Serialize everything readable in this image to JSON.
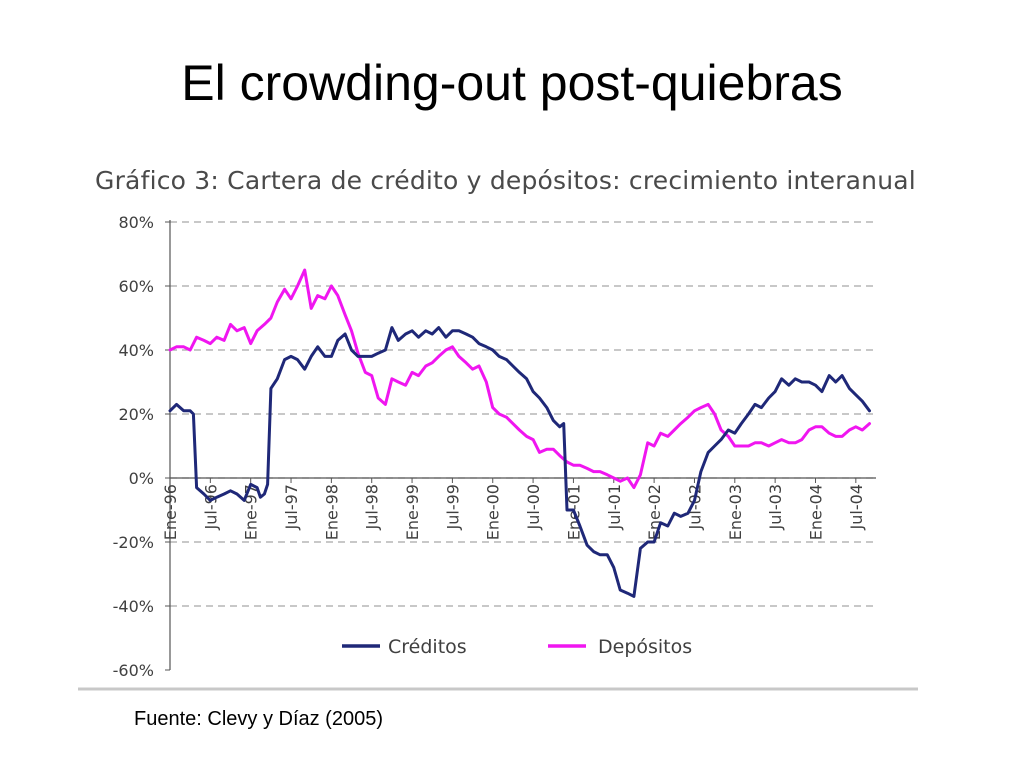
{
  "slide": {
    "title": "El crowding-out post-quiebras",
    "source": "Fuente: Clevy y Díaz (2005)"
  },
  "colors": {
    "creditos": "#1f2878",
    "depositos": "#f016f0",
    "grid": "#a8a8a8",
    "axis": "#555555",
    "text": "#404040"
  },
  "chart_data": {
    "type": "line",
    "title": "Gráfico 3: Cartera de crédito y depósitos: crecimiento interanual",
    "xlabel": "",
    "ylabel": "",
    "ylim": [
      -60,
      80
    ],
    "yticks": [
      80,
      60,
      40,
      20,
      0,
      -20,
      -40,
      -60
    ],
    "ytick_labels": [
      "80%",
      "60%",
      "40%",
      "20%",
      "0%",
      "-20%",
      "-40%",
      "-60%"
    ],
    "xlim": [
      1996.0,
      2004.75
    ],
    "xticks": [
      1996.0,
      1996.5,
      1997.0,
      1997.5,
      1998.0,
      1998.5,
      1999.0,
      1999.5,
      2000.0,
      2000.5,
      2001.0,
      2001.5,
      2002.0,
      2002.5,
      2003.0,
      2003.5,
      2004.0,
      2004.5
    ],
    "xtick_labels": [
      "Ene-96",
      "Jul-96",
      "Ene-97",
      "Jul-97",
      "Ene-98",
      "Jul-98",
      "Ene-99",
      "Jul-99",
      "Ene-00",
      "Jul-00",
      "Ene-01",
      "Jul-01",
      "Ene-02",
      "Jul-02",
      "Ene-03",
      "Jul-03",
      "Ene-04",
      "Jul-04"
    ],
    "grid": true,
    "legend": "bottom",
    "series": [
      {
        "name": "Créditos",
        "points": [
          [
            1996.0,
            21
          ],
          [
            1996.08,
            23
          ],
          [
            1996.17,
            21
          ],
          [
            1996.25,
            21
          ],
          [
            1996.29,
            20
          ],
          [
            1996.33,
            -3
          ],
          [
            1996.42,
            -5
          ],
          [
            1996.5,
            -7
          ],
          [
            1996.58,
            -6
          ],
          [
            1996.67,
            -5
          ],
          [
            1996.75,
            -4
          ],
          [
            1996.83,
            -5
          ],
          [
            1996.92,
            -7
          ],
          [
            1997.0,
            -2
          ],
          [
            1997.08,
            -3
          ],
          [
            1997.12,
            -6
          ],
          [
            1997.17,
            -5
          ],
          [
            1997.21,
            -2
          ],
          [
            1997.25,
            28
          ],
          [
            1997.33,
            31
          ],
          [
            1997.42,
            37
          ],
          [
            1997.5,
            38
          ],
          [
            1997.58,
            37
          ],
          [
            1997.67,
            34
          ],
          [
            1997.75,
            38
          ],
          [
            1997.83,
            41
          ],
          [
            1997.92,
            38
          ],
          [
            1998.0,
            38
          ],
          [
            1998.08,
            43
          ],
          [
            1998.17,
            45
          ],
          [
            1998.25,
            40
          ],
          [
            1998.33,
            38
          ],
          [
            1998.42,
            38
          ],
          [
            1998.5,
            38
          ],
          [
            1998.58,
            39
          ],
          [
            1998.67,
            40
          ],
          [
            1998.75,
            47
          ],
          [
            1998.83,
            43
          ],
          [
            1998.92,
            45
          ],
          [
            1999.0,
            46
          ],
          [
            1999.08,
            44
          ],
          [
            1999.17,
            46
          ],
          [
            1999.25,
            45
          ],
          [
            1999.33,
            47
          ],
          [
            1999.42,
            44
          ],
          [
            1999.5,
            46
          ],
          [
            1999.58,
            46
          ],
          [
            1999.67,
            45
          ],
          [
            1999.75,
            44
          ],
          [
            1999.83,
            42
          ],
          [
            1999.92,
            41
          ],
          [
            2000.0,
            40
          ],
          [
            2000.08,
            38
          ],
          [
            2000.17,
            37
          ],
          [
            2000.25,
            35
          ],
          [
            2000.33,
            33
          ],
          [
            2000.42,
            31
          ],
          [
            2000.5,
            27
          ],
          [
            2000.58,
            25
          ],
          [
            2000.67,
            22
          ],
          [
            2000.75,
            18
          ],
          [
            2000.83,
            16
          ],
          [
            2000.88,
            17
          ],
          [
            2000.92,
            -10
          ],
          [
            2001.0,
            -10
          ],
          [
            2001.08,
            -15
          ],
          [
            2001.17,
            -21
          ],
          [
            2001.25,
            -23
          ],
          [
            2001.33,
            -24
          ],
          [
            2001.42,
            -24
          ],
          [
            2001.5,
            -28
          ],
          [
            2001.58,
            -35
          ],
          [
            2001.67,
            -36
          ],
          [
            2001.75,
            -37
          ],
          [
            2001.83,
            -22
          ],
          [
            2001.92,
            -20
          ],
          [
            2002.0,
            -20
          ],
          [
            2002.08,
            -14
          ],
          [
            2002.17,
            -15
          ],
          [
            2002.25,
            -11
          ],
          [
            2002.33,
            -12
          ],
          [
            2002.42,
            -11
          ],
          [
            2002.5,
            -7
          ],
          [
            2002.58,
            2
          ],
          [
            2002.67,
            8
          ],
          [
            2002.75,
            10
          ],
          [
            2002.83,
            12
          ],
          [
            2002.92,
            15
          ],
          [
            2003.0,
            14
          ],
          [
            2003.08,
            17
          ],
          [
            2003.17,
            20
          ],
          [
            2003.25,
            23
          ],
          [
            2003.33,
            22
          ],
          [
            2003.42,
            25
          ],
          [
            2003.5,
            27
          ],
          [
            2003.58,
            31
          ],
          [
            2003.67,
            29
          ],
          [
            2003.75,
            31
          ],
          [
            2003.83,
            30
          ],
          [
            2003.92,
            30
          ],
          [
            2004.0,
            29
          ],
          [
            2004.08,
            27
          ],
          [
            2004.17,
            32
          ],
          [
            2004.25,
            30
          ],
          [
            2004.33,
            32
          ],
          [
            2004.42,
            28
          ],
          [
            2004.5,
            26
          ],
          [
            2004.58,
            24
          ],
          [
            2004.67,
            21
          ]
        ]
      },
      {
        "name": "Depósitos",
        "points": [
          [
            1996.0,
            40
          ],
          [
            1996.08,
            41
          ],
          [
            1996.17,
            41
          ],
          [
            1996.25,
            40
          ],
          [
            1996.33,
            44
          ],
          [
            1996.42,
            43
          ],
          [
            1996.5,
            42
          ],
          [
            1996.58,
            44
          ],
          [
            1996.67,
            43
          ],
          [
            1996.75,
            48
          ],
          [
            1996.83,
            46
          ],
          [
            1996.92,
            47
          ],
          [
            1997.0,
            42
          ],
          [
            1997.08,
            46
          ],
          [
            1997.17,
            48
          ],
          [
            1997.25,
            50
          ],
          [
            1997.33,
            55
          ],
          [
            1997.42,
            59
          ],
          [
            1997.5,
            56
          ],
          [
            1997.58,
            60
          ],
          [
            1997.67,
            65
          ],
          [
            1997.75,
            53
          ],
          [
            1997.83,
            57
          ],
          [
            1997.92,
            56
          ],
          [
            1998.0,
            60
          ],
          [
            1998.08,
            57
          ],
          [
            1998.17,
            51
          ],
          [
            1998.25,
            46
          ],
          [
            1998.33,
            39
          ],
          [
            1998.42,
            33
          ],
          [
            1998.5,
            32
          ],
          [
            1998.58,
            25
          ],
          [
            1998.67,
            23
          ],
          [
            1998.75,
            31
          ],
          [
            1998.83,
            30
          ],
          [
            1998.92,
            29
          ],
          [
            1999.0,
            33
          ],
          [
            1999.08,
            32
          ],
          [
            1999.17,
            35
          ],
          [
            1999.25,
            36
          ],
          [
            1999.33,
            38
          ],
          [
            1999.42,
            40
          ],
          [
            1999.5,
            41
          ],
          [
            1999.58,
            38
          ],
          [
            1999.67,
            36
          ],
          [
            1999.75,
            34
          ],
          [
            1999.83,
            35
          ],
          [
            1999.92,
            30
          ],
          [
            2000.0,
            22
          ],
          [
            2000.08,
            20
          ],
          [
            2000.17,
            19
          ],
          [
            2000.25,
            17
          ],
          [
            2000.33,
            15
          ],
          [
            2000.42,
            13
          ],
          [
            2000.5,
            12
          ],
          [
            2000.58,
            8
          ],
          [
            2000.67,
            9
          ],
          [
            2000.75,
            9
          ],
          [
            2000.83,
            7
          ],
          [
            2000.92,
            5
          ],
          [
            2001.0,
            4
          ],
          [
            2001.08,
            4
          ],
          [
            2001.17,
            3
          ],
          [
            2001.25,
            2
          ],
          [
            2001.33,
            2
          ],
          [
            2001.42,
            1
          ],
          [
            2001.5,
            0
          ],
          [
            2001.58,
            -1
          ],
          [
            2001.67,
            0
          ],
          [
            2001.75,
            -3
          ],
          [
            2001.83,
            1
          ],
          [
            2001.92,
            11
          ],
          [
            2002.0,
            10
          ],
          [
            2002.08,
            14
          ],
          [
            2002.17,
            13
          ],
          [
            2002.25,
            15
          ],
          [
            2002.33,
            17
          ],
          [
            2002.42,
            19
          ],
          [
            2002.5,
            21
          ],
          [
            2002.58,
            22
          ],
          [
            2002.67,
            23
          ],
          [
            2002.75,
            20
          ],
          [
            2002.83,
            15
          ],
          [
            2002.92,
            13
          ],
          [
            2003.0,
            10
          ],
          [
            2003.08,
            10
          ],
          [
            2003.17,
            10
          ],
          [
            2003.25,
            11
          ],
          [
            2003.33,
            11
          ],
          [
            2003.42,
            10
          ],
          [
            2003.5,
            11
          ],
          [
            2003.58,
            12
          ],
          [
            2003.67,
            11
          ],
          [
            2003.75,
            11
          ],
          [
            2003.83,
            12
          ],
          [
            2003.92,
            15
          ],
          [
            2004.0,
            16
          ],
          [
            2004.08,
            16
          ],
          [
            2004.17,
            14
          ],
          [
            2004.25,
            13
          ],
          [
            2004.33,
            13
          ],
          [
            2004.42,
            15
          ],
          [
            2004.5,
            16
          ],
          [
            2004.58,
            15
          ],
          [
            2004.67,
            17
          ]
        ]
      }
    ]
  }
}
